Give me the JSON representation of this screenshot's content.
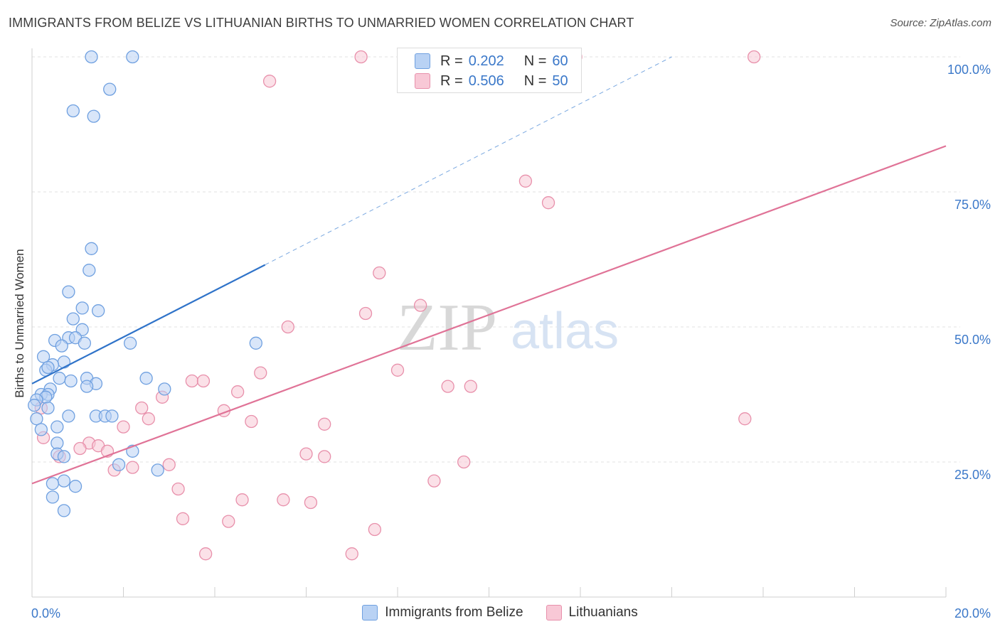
{
  "title": "IMMIGRANTS FROM BELIZE VS LITHUANIAN BIRTHS TO UNMARRIED WOMEN CORRELATION CHART",
  "source": "Source: ZipAtlas.com",
  "watermark": {
    "zip": "ZIP",
    "atlas": "atlas"
  },
  "legend_top": {
    "rows": [
      {
        "r_label": "R =",
        "r_value": "0.202",
        "n_label": "N =",
        "n_value": "60",
        "color": "#6fa0e0"
      },
      {
        "r_label": "R =",
        "r_value": "0.506",
        "n_label": "N =",
        "n_value": "50",
        "color": "#e890ab"
      }
    ]
  },
  "legend_bottom": {
    "series1": "Immigrants from Belize",
    "series2": "Lithuanians"
  },
  "chart_data": {
    "type": "scatter",
    "title": "IMMIGRANTS FROM BELIZE VS LITHUANIAN BIRTHS TO UNMARRIED WOMEN CORRELATION CHART",
    "xlabel": "",
    "ylabel": "Births to Unmarried Women",
    "xlim": [
      0,
      20
    ],
    "ylim": [
      0,
      100
    ],
    "x_tick_labels": [
      "0.0%",
      "20.0%"
    ],
    "y_tick_labels": [
      "25.0%",
      "50.0%",
      "75.0%",
      "100.0%"
    ],
    "y_ticks": [
      25,
      50,
      75,
      100
    ],
    "grid": true,
    "series": [
      {
        "name": "Immigrants from Belize",
        "color": "#6fa0e0",
        "fill": "#b9d2f4",
        "trend": {
          "x": [
            0,
            5.1
          ],
          "y": [
            39.5,
            61.5
          ],
          "extended_to": [
            14,
            100
          ]
        },
        "points": [
          [
            1.3,
            100
          ],
          [
            2.2,
            100
          ],
          [
            1.7,
            94
          ],
          [
            0.9,
            90
          ],
          [
            1.35,
            89
          ],
          [
            1.3,
            64.5
          ],
          [
            1.25,
            60.5
          ],
          [
            0.8,
            56.5
          ],
          [
            1.1,
            53.5
          ],
          [
            1.45,
            53
          ],
          [
            0.9,
            51.5
          ],
          [
            1.1,
            49.5
          ],
          [
            0.5,
            47.5
          ],
          [
            0.8,
            48
          ],
          [
            0.95,
            48
          ],
          [
            0.65,
            46.5
          ],
          [
            1.15,
            47
          ],
          [
            2.15,
            47
          ],
          [
            4.9,
            47
          ],
          [
            0.25,
            44.5
          ],
          [
            0.7,
            43.5
          ],
          [
            0.45,
            43
          ],
          [
            0.3,
            42
          ],
          [
            0.35,
            42.5
          ],
          [
            0.6,
            40.5
          ],
          [
            1.2,
            40.5
          ],
          [
            2.5,
            40.5
          ],
          [
            0.85,
            40
          ],
          [
            1.4,
            39.5
          ],
          [
            1.2,
            39
          ],
          [
            0.4,
            38.5
          ],
          [
            2.9,
            38.5
          ],
          [
            0.2,
            37.5
          ],
          [
            0.35,
            37.5
          ],
          [
            0.3,
            37
          ],
          [
            0.1,
            36.5
          ],
          [
            0.05,
            35.5
          ],
          [
            0.35,
            35
          ],
          [
            0.8,
            33.5
          ],
          [
            1.4,
            33.5
          ],
          [
            1.6,
            33.5
          ],
          [
            1.75,
            33.5
          ],
          [
            0.1,
            33
          ],
          [
            0.55,
            31.5
          ],
          [
            0.2,
            31
          ],
          [
            0.55,
            28.5
          ],
          [
            2.2,
            27
          ],
          [
            0.55,
            26.5
          ],
          [
            0.7,
            26
          ],
          [
            1.9,
            24.5
          ],
          [
            2.75,
            23.5
          ],
          [
            0.7,
            21.5
          ],
          [
            0.45,
            21
          ],
          [
            0.95,
            20.5
          ],
          [
            0.45,
            18.5
          ],
          [
            0.7,
            16
          ]
        ]
      },
      {
        "name": "Lithuanians",
        "color": "#e890ab",
        "fill": "#f8c8d6",
        "trend": {
          "x": [
            0,
            20
          ],
          "y": [
            21,
            83.5
          ]
        },
        "points": [
          [
            7.2,
            100
          ],
          [
            11.9,
            100
          ],
          [
            15.8,
            100
          ],
          [
            5.2,
            95.5
          ],
          [
            10.8,
            77
          ],
          [
            11.3,
            73
          ],
          [
            7.6,
            60
          ],
          [
            7.3,
            52.5
          ],
          [
            8.5,
            54
          ],
          [
            5.6,
            50
          ],
          [
            8.0,
            42
          ],
          [
            5.0,
            41.5
          ],
          [
            3.5,
            40
          ],
          [
            3.75,
            40
          ],
          [
            4.5,
            38
          ],
          [
            9.1,
            39
          ],
          [
            9.6,
            39
          ],
          [
            2.85,
            37
          ],
          [
            0.2,
            35
          ],
          [
            2.4,
            35
          ],
          [
            4.2,
            34.5
          ],
          [
            2.55,
            33
          ],
          [
            4.8,
            32.5
          ],
          [
            6.4,
            32
          ],
          [
            2.0,
            31.5
          ],
          [
            15.6,
            33
          ],
          [
            0.25,
            29.5
          ],
          [
            1.25,
            28.5
          ],
          [
            1.45,
            28
          ],
          [
            1.05,
            27.5
          ],
          [
            1.65,
            27
          ],
          [
            6.0,
            26.5
          ],
          [
            6.4,
            26
          ],
          [
            0.6,
            26
          ],
          [
            9.45,
            25
          ],
          [
            3.0,
            24.5
          ],
          [
            2.2,
            24
          ],
          [
            1.8,
            23.5
          ],
          [
            3.2,
            20
          ],
          [
            8.8,
            21.5
          ],
          [
            4.6,
            18
          ],
          [
            5.5,
            18
          ],
          [
            6.1,
            17.5
          ],
          [
            3.3,
            14.5
          ],
          [
            4.3,
            14
          ],
          [
            7.5,
            12.5
          ],
          [
            3.8,
            8
          ],
          [
            7.0,
            8
          ]
        ]
      }
    ]
  }
}
